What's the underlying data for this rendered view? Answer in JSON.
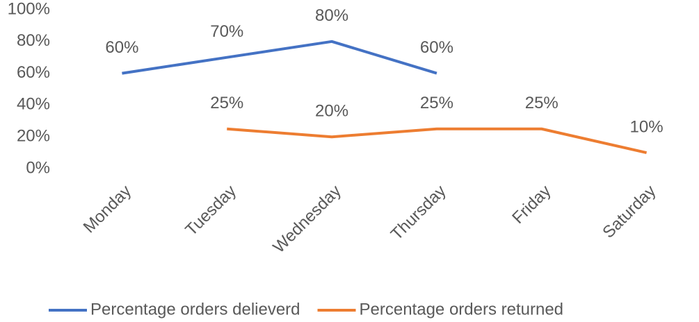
{
  "chart_data": {
    "type": "line",
    "categories": [
      "Monday",
      "Tuesday",
      "Wednesday",
      "Thursday",
      "Friday",
      "Saturday"
    ],
    "series": [
      {
        "name": "Percentage orders delieverd",
        "color": "#4472c4",
        "values": [
          60,
          70,
          80,
          60,
          null,
          null
        ],
        "value_labels": [
          "60%",
          "70%",
          "80%",
          "60%",
          null,
          null
        ]
      },
      {
        "name": "Percentage orders returned",
        "color": "#ed7d31",
        "values": [
          null,
          25,
          20,
          25,
          25,
          10
        ],
        "value_labels": [
          null,
          "25%",
          "20%",
          "25%",
          "25%",
          "10%"
        ]
      }
    ],
    "ylim": [
      0,
      100
    ],
    "yticks": [
      {
        "value": 0,
        "label": "0%"
      },
      {
        "value": 20,
        "label": "20%"
      },
      {
        "value": 40,
        "label": "40%"
      },
      {
        "value": 60,
        "label": "60%"
      },
      {
        "value": 80,
        "label": "80%"
      },
      {
        "value": 100,
        "label": "100%"
      }
    ],
    "grid": false,
    "legend": "bottom"
  }
}
